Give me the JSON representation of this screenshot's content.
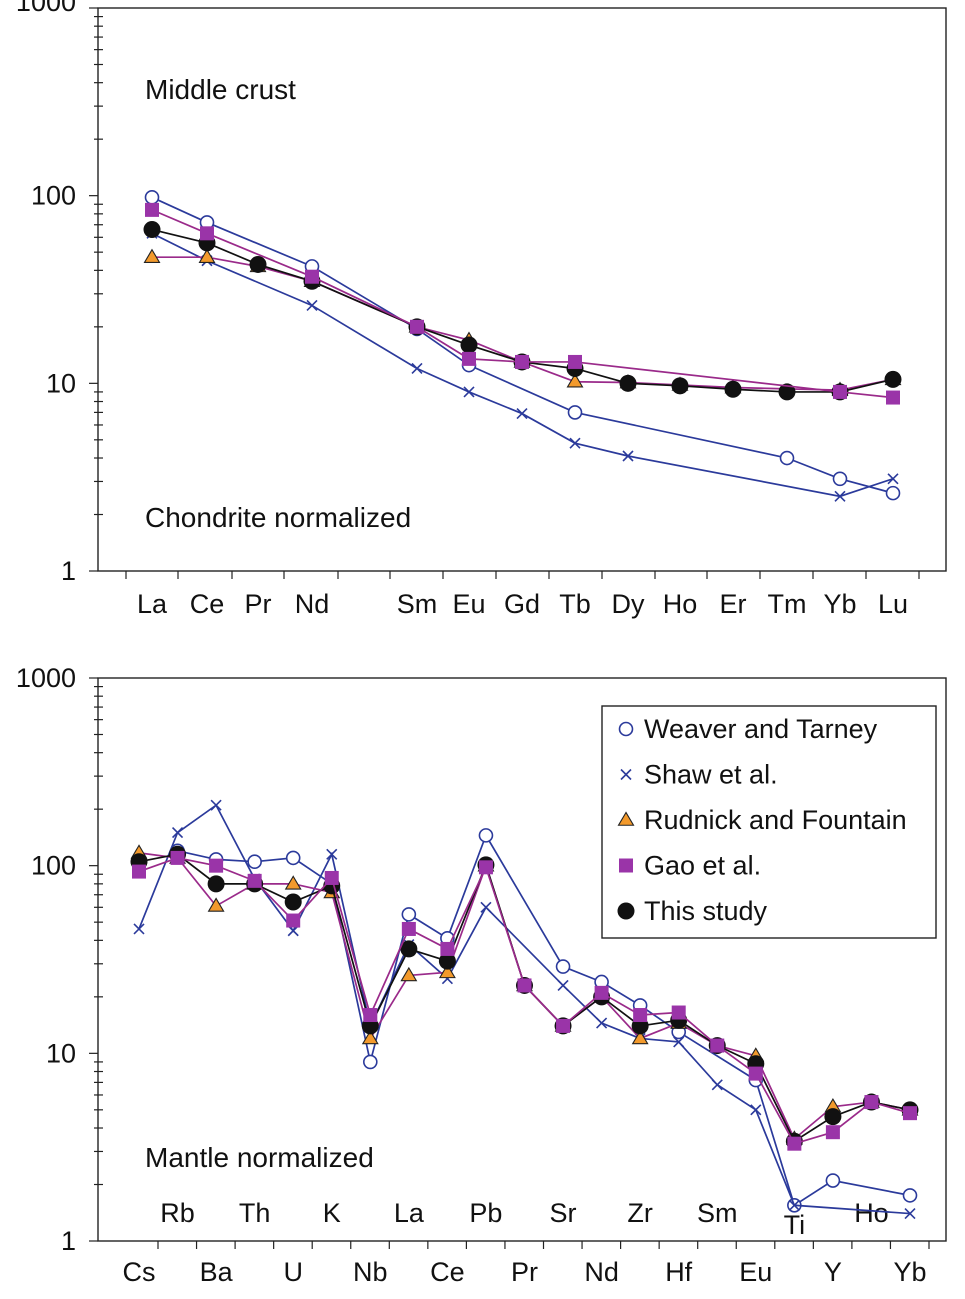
{
  "chart_data": [
    {
      "type": "line",
      "yscale": "log",
      "ylim": [
        1,
        1000
      ],
      "yticks": [
        "1",
        "10",
        "100",
        "1000"
      ],
      "categories": [
        "La",
        "Ce",
        "Pr",
        "Nd",
        "Sm",
        "Eu",
        "Gd",
        "Tb",
        "Dy",
        "Ho",
        "Er",
        "Tm",
        "Yb",
        "Lu"
      ],
      "annotations": [
        "Middle crust",
        "Chondrite normalized"
      ],
      "series": [
        {
          "name": "Weaver and Tarney",
          "marker": "circle-open",
          "color": "#2b3a9b",
          "points": [
            [
              "La",
              98
            ],
            [
              "Ce",
              72
            ],
            [
              "Nd",
              42
            ],
            [
              "Sm",
              19.5
            ],
            [
              "Eu",
              12.5
            ],
            [
              "Tb",
              7.0
            ],
            [
              "Tm",
              4.0
            ],
            [
              "Yb",
              3.1
            ],
            [
              "Lu",
              2.6
            ]
          ]
        },
        {
          "name": "Shaw et al.",
          "marker": "x",
          "color": "#2b3a9b",
          "points": [
            [
              "La",
              63
            ],
            [
              "Ce",
              45
            ],
            [
              "Nd",
              26
            ],
            [
              "Sm",
              12
            ],
            [
              "Eu",
              9.0
            ],
            [
              "Gd",
              6.9
            ],
            [
              "Tb",
              4.8
            ],
            [
              "Dy",
              4.1
            ],
            [
              "Yb",
              2.5
            ],
            [
              "Lu",
              3.1
            ]
          ]
        },
        {
          "name": "Rudnick and Fountain",
          "marker": "triangle",
          "color": "#9a2a8a",
          "points": [
            [
              "La",
              47
            ],
            [
              "Ce",
              47
            ],
            [
              "Pr",
              42
            ],
            [
              "Nd",
              35
            ],
            [
              "Sm",
              20
            ],
            [
              "Eu",
              17
            ],
            [
              "Gd",
              13
            ],
            [
              "Tb",
              10.2
            ],
            [
              "Dy",
              10.1
            ],
            [
              "Ho",
              9.8
            ],
            [
              "Er",
              9.5
            ],
            [
              "Yb",
              9.2
            ],
            [
              "Lu",
              10.5
            ]
          ]
        },
        {
          "name": "Gao et al.",
          "marker": "square",
          "color": "#9a2a8a",
          "points": [
            [
              "La",
              84
            ],
            [
              "Ce",
              63
            ],
            [
              "Nd",
              37
            ],
            [
              "Sm",
              20
            ],
            [
              "Eu",
              13.5
            ],
            [
              "Gd",
              13
            ],
            [
              "Tb",
              13
            ],
            [
              "Yb",
              9.0
            ],
            [
              "Lu",
              8.4
            ]
          ]
        },
        {
          "name": "This study",
          "marker": "circle-filled",
          "color": "#111111",
          "points": [
            [
              "La",
              66
            ],
            [
              "Ce",
              56
            ],
            [
              "Pr",
              43
            ],
            [
              "Nd",
              35
            ],
            [
              "Sm",
              20
            ],
            [
              "Eu",
              16
            ],
            [
              "Gd",
              13
            ],
            [
              "Tb",
              12
            ],
            [
              "Dy",
              10
            ],
            [
              "Ho",
              9.7
            ],
            [
              "Er",
              9.3
            ],
            [
              "Tm",
              9.0
            ],
            [
              "Yb",
              9.0
            ],
            [
              "Lu",
              10.5
            ]
          ]
        }
      ]
    },
    {
      "type": "line",
      "yscale": "log",
      "ylim": [
        1,
        1000
      ],
      "yticks": [
        "1",
        "10",
        "100",
        "1000"
      ],
      "categories": [
        "Cs",
        "Rb",
        "Ba",
        "Th",
        "U",
        "K",
        "Nb",
        "La",
        "Ce",
        "Pb",
        "Pr",
        "Sr",
        "Nd",
        "Zr",
        "Hf",
        "Sm",
        "Eu",
        "Ti",
        "Y",
        "Ho",
        "Yb"
      ],
      "bottom_labels": [
        "Cs",
        "Ba",
        "U",
        "Nb",
        "Ce",
        "Pr",
        "Nd",
        "Hf",
        "Eu",
        "Y",
        "Yb"
      ],
      "inner_labels": [
        "Rb",
        "Th",
        "K",
        "La",
        "Pb",
        "Sr",
        "Zr",
        "Sm",
        "Ti",
        "Ho"
      ],
      "annotations": [
        "Mantle normalized"
      ],
      "legend": {
        "position": "top-right",
        "entries": [
          {
            "label": "Weaver and Tarney",
            "marker": "circle-open"
          },
          {
            "label": "Shaw et al.",
            "marker": "x"
          },
          {
            "label": "Rudnick and Fountain",
            "marker": "triangle"
          },
          {
            "label": "Gao et al.",
            "marker": "square"
          },
          {
            "label": "This study",
            "marker": "circle-filled"
          }
        ]
      },
      "series": [
        {
          "name": "Weaver and Tarney",
          "marker": "circle-open",
          "color": "#2b3a9b",
          "points": [
            [
              "Rb",
              120
            ],
            [
              "Ba",
              108
            ],
            [
              "Th",
              105
            ],
            [
              "U",
              110
            ],
            [
              "K",
              80
            ],
            [
              "Nb",
              9.0
            ],
            [
              "La",
              55
            ],
            [
              "Ce",
              41
            ],
            [
              "Pb",
              145
            ],
            [
              "Sr",
              29
            ],
            [
              "Nd",
              24
            ],
            [
              "Zr",
              18
            ],
            [
              "Hf",
              13
            ],
            [
              "Eu",
              7.2
            ],
            [
              "Ti",
              1.55
            ],
            [
              "Y",
              2.1
            ],
            [
              "Yb",
              1.75
            ]
          ]
        },
        {
          "name": "Shaw et al.",
          "marker": "x",
          "color": "#2b3a9b",
          "points": [
            [
              "Cs",
              46
            ],
            [
              "Rb",
              150
            ],
            [
              "Ba",
              210
            ],
            [
              "Th",
              85
            ],
            [
              "U",
              45
            ],
            [
              "K",
              115
            ],
            [
              "Nb",
              14
            ],
            [
              "La",
              38
            ],
            [
              "Ce",
              25
            ],
            [
              "Pb",
              60
            ],
            [
              "Sr",
              23
            ],
            [
              "Nd",
              14.5
            ],
            [
              "Zr",
              12
            ],
            [
              "Hf",
              11.5
            ],
            [
              "Sm",
              6.8
            ],
            [
              "Eu",
              5.0
            ],
            [
              "Ti",
              1.55
            ],
            [
              "Yb",
              1.4
            ]
          ]
        },
        {
          "name": "Rudnick and Fountain",
          "marker": "triangle",
          "color": "#9a2a8a",
          "points": [
            [
              "Cs",
              117
            ],
            [
              "Rb",
              110
            ],
            [
              "Ba",
              61
            ],
            [
              "Th",
              80
            ],
            [
              "U",
              80
            ],
            [
              "K",
              72
            ],
            [
              "Nb",
              12
            ],
            [
              "La",
              26
            ],
            [
              "Ce",
              27
            ],
            [
              "Pb",
              100
            ],
            [
              "Pr",
              23
            ],
            [
              "Sr",
              14
            ],
            [
              "Nd",
              20
            ],
            [
              "Zr",
              12
            ],
            [
              "Hf",
              14.5
            ],
            [
              "Sm",
              11
            ],
            [
              "Eu",
              9.7
            ],
            [
              "Ti",
              3.5
            ],
            [
              "Y",
              5.2
            ],
            [
              "Ho",
              5.5
            ],
            [
              "Yb",
              5.0
            ]
          ]
        },
        {
          "name": "Gao et al.",
          "marker": "square",
          "color": "#9a2a8a",
          "points": [
            [
              "Cs",
              93
            ],
            [
              "Rb",
              110
            ],
            [
              "Ba",
              100
            ],
            [
              "Th",
              83
            ],
            [
              "U",
              51
            ],
            [
              "K",
              86
            ],
            [
              "Nb",
              16
            ],
            [
              "La",
              46
            ],
            [
              "Ce",
              36
            ],
            [
              "Pb",
              98
            ],
            [
              "Pr",
              23
            ],
            [
              "Sr",
              14
            ],
            [
              "Nd",
              21
            ],
            [
              "Zr",
              16
            ],
            [
              "Hf",
              16.5
            ],
            [
              "Sm",
              11
            ],
            [
              "Eu",
              7.8
            ],
            [
              "Ti",
              3.3
            ],
            [
              "Y",
              3.8
            ],
            [
              "Ho",
              5.5
            ],
            [
              "Yb",
              4.8
            ]
          ]
        },
        {
          "name": "This study",
          "marker": "circle-filled",
          "color": "#111111",
          "points": [
            [
              "Cs",
              105
            ],
            [
              "Rb",
              115
            ],
            [
              "Ba",
              80
            ],
            [
              "Th",
              80
            ],
            [
              "U",
              64
            ],
            [
              "K",
              78
            ],
            [
              "Nb",
              14
            ],
            [
              "La",
              36
            ],
            [
              "Ce",
              31
            ],
            [
              "Pb",
              101
            ],
            [
              "Pr",
              23
            ],
            [
              "Sr",
              14
            ],
            [
              "Nd",
              20
            ],
            [
              "Zr",
              14
            ],
            [
              "Hf",
              15
            ],
            [
              "Sm",
              11
            ],
            [
              "Eu",
              8.8
            ],
            [
              "Ti",
              3.4
            ],
            [
              "Y",
              4.6
            ],
            [
              "Ho",
              5.5
            ],
            [
              "Yb",
              5.0
            ]
          ]
        }
      ]
    }
  ]
}
